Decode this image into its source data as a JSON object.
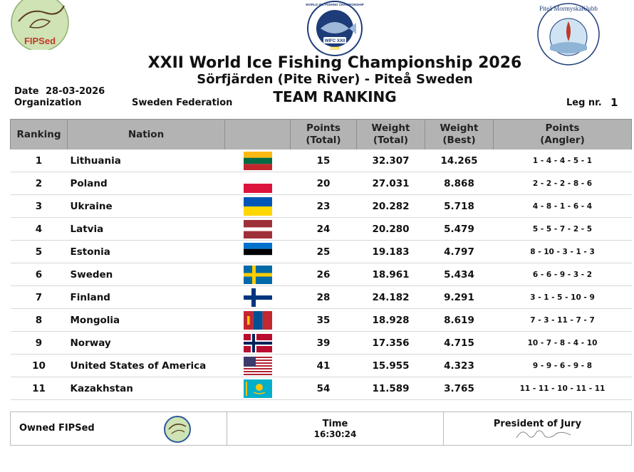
{
  "header": {
    "title": "XXII World Ice Fishing Championship 2026",
    "subtitle": "Sörfjärden (Pite River) - Piteå Sweden",
    "ranking_title": "TEAM RANKING",
    "date_label": "Date",
    "date_value": "28-03-2026",
    "organization_label": "Organization",
    "organization_value": "Sweden Federation",
    "leg_label": "Leg nr.",
    "leg_value": "1"
  },
  "logos": {
    "left_text": "FIPSed",
    "middle_text_top": "WORLD ICE FISHING CHAMPIONSHIP",
    "middle_badge": "WIFC XXII",
    "middle_year": "2026",
    "right_text": "Piteå MormyskaKlubb"
  },
  "table": {
    "headers": {
      "ranking": "Ranking",
      "nation": "Nation",
      "flag": "",
      "points_total": [
        "Points",
        "(Total)"
      ],
      "weight_total": [
        "Weight",
        "(Total)"
      ],
      "weight_best": [
        "Weight",
        "(Best)"
      ],
      "points_angler": [
        "Points",
        "(Angler)"
      ]
    },
    "rows": [
      {
        "rank": "1",
        "nation": "Lithuania",
        "flag": "flag-lithuania",
        "points": "15",
        "weight_total": "32.307",
        "weight_best": "14.265",
        "angler": "1 - 4 - 4 - 5 - 1"
      },
      {
        "rank": "2",
        "nation": "Poland",
        "flag": "flag-poland",
        "points": "20",
        "weight_total": "27.031",
        "weight_best": "8.868",
        "angler": "2 - 2 - 2 - 8 - 6"
      },
      {
        "rank": "3",
        "nation": "Ukraine",
        "flag": "flag-ukraine",
        "points": "23",
        "weight_total": "20.282",
        "weight_best": "5.718",
        "angler": "4 - 8 - 1 - 6 - 4"
      },
      {
        "rank": "4",
        "nation": "Latvia",
        "flag": "flag-latvia",
        "points": "24",
        "weight_total": "20.280",
        "weight_best": "5.479",
        "angler": "5 - 5 - 7 - 2 - 5"
      },
      {
        "rank": "5",
        "nation": "Estonia",
        "flag": "flag-estonia",
        "points": "25",
        "weight_total": "19.183",
        "weight_best": "4.797",
        "angler": "8 - 10 - 3 - 1 - 3"
      },
      {
        "rank": "6",
        "nation": "Sweden",
        "flag": "flag-sweden",
        "points": "26",
        "weight_total": "18.961",
        "weight_best": "5.434",
        "angler": "6 - 6 - 9 - 3 - 2"
      },
      {
        "rank": "7",
        "nation": "Finland",
        "flag": "flag-finland",
        "points": "28",
        "weight_total": "24.182",
        "weight_best": "9.291",
        "angler": "3 - 1 - 5 - 10 - 9"
      },
      {
        "rank": "8",
        "nation": "Mongolia",
        "flag": "flag-mongolia",
        "points": "35",
        "weight_total": "18.928",
        "weight_best": "8.619",
        "angler": "7 - 3 - 11 - 7 - 7"
      },
      {
        "rank": "9",
        "nation": "Norway",
        "flag": "flag-norway",
        "points": "39",
        "weight_total": "17.356",
        "weight_best": "4.715",
        "angler": "10 - 7 - 8 - 4 - 10"
      },
      {
        "rank": "10",
        "nation": "United States of America",
        "flag": "flag-usa",
        "points": "41",
        "weight_total": "15.955",
        "weight_best": "4.323",
        "angler": "9 - 9 - 6 - 9 - 8"
      },
      {
        "rank": "11",
        "nation": "Kazakhstan",
        "flag": "flag-kazakhstan",
        "points": "54",
        "weight_total": "11.589",
        "weight_best": "3.765",
        "angler": "11 - 11 - 10 - 11 - 11"
      }
    ]
  },
  "footer": {
    "owned_label": "Owned FIPSed",
    "time_label": "Time",
    "time_value": "16:30:24",
    "president_label": "President of Jury"
  },
  "colors": {
    "header_bg": "#b3b3b3",
    "row_divider": "#d8d8d8"
  }
}
